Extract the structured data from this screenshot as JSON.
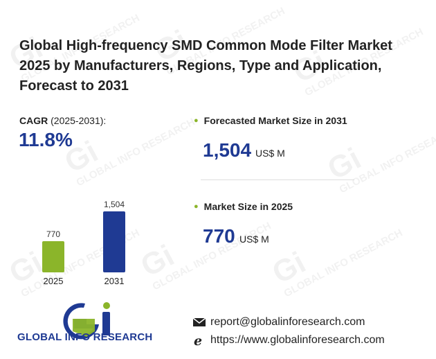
{
  "title": "Global High-frequency SMD Common Mode Filter Market 2025 by Manufacturers, Regions, Type and Application, Forecast to 2031",
  "cagr": {
    "label": "CAGR",
    "period": "(2025-2031):",
    "value": "11.8%"
  },
  "forecast": {
    "label": "Forecasted Market Size in 2031",
    "value": "1,504",
    "unit": "US$ M"
  },
  "current": {
    "label": "Market Size in 2025",
    "value": "770",
    "unit": "US$ M"
  },
  "chart_data": {
    "type": "bar",
    "categories": [
      "2025",
      "2031"
    ],
    "values": [
      770,
      1504
    ],
    "data_labels": [
      "770",
      "1,504"
    ],
    "colors": [
      "#8bb52a",
      "#1f3a93"
    ],
    "ylim": [
      0,
      1504
    ]
  },
  "brand": {
    "name": "GLOBAL INFO RESEARCH",
    "watermark_mark": "Gi",
    "watermark_text": "GLOBAL INFO RESEARCH",
    "primary_color": "#1f3a93",
    "accent_color": "#8bb52a"
  },
  "contact": {
    "email_icon": "envelope-icon",
    "email": "report@globalinforesearch.com",
    "web_icon": "browser-e-icon",
    "website": "https://www.globalinforesearch.com"
  }
}
